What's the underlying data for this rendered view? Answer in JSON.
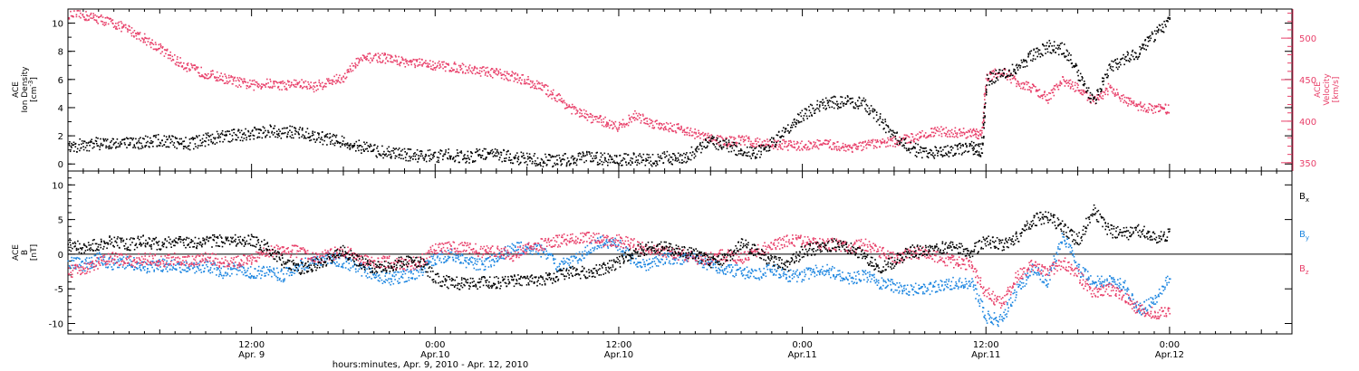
{
  "figure": {
    "x_axis_title": "hours:minutes, Apr.  9, 2010 - Apr. 12, 2010",
    "x_tick_labels": [
      {
        "x": 12,
        "time": "12:00",
        "date": "Apr. 9"
      },
      {
        "x": 24,
        "time": "0:00",
        "date": "Apr.10"
      },
      {
        "x": 36,
        "time": "12:00",
        "date": "Apr.10"
      },
      {
        "x": 48,
        "time": "0:00",
        "date": "Apr.11"
      },
      {
        "x": 60,
        "time": "12:00",
        "date": "Apr.11"
      },
      {
        "x": 72,
        "time": "0:00",
        "date": "Apr.12"
      }
    ]
  },
  "chart_data": [
    {
      "type": "scatter",
      "title": "",
      "x_unit": "hours from Apr. 9, 2010 0:00",
      "xlim": [
        0,
        80
      ],
      "y_left": {
        "label_lines": [
          "ACE",
          "Ion Density",
          "[cm^-3]"
        ],
        "ylim": [
          -0.5,
          11
        ],
        "ticks": [
          0,
          2,
          4,
          6,
          8,
          10
        ]
      },
      "y_right": {
        "label_lines": [
          "ACE",
          "Velocity",
          "[km/s]"
        ],
        "ylim": [
          340,
          535
        ],
        "ticks": [
          350,
          400,
          450,
          500
        ]
      },
      "series": [
        {
          "name": "Ion Density",
          "color": "#000000",
          "axis": "left",
          "x": [
            0,
            1,
            2,
            3,
            4,
            5,
            6,
            7,
            8,
            9,
            10,
            11,
            12,
            13,
            14,
            15,
            16,
            17,
            18,
            19,
            20,
            21,
            22,
            23,
            24,
            25,
            26,
            27,
            28,
            29,
            30,
            31,
            32,
            33,
            34,
            35,
            36,
            37,
            38,
            39,
            40,
            41,
            42,
            43,
            44,
            45,
            46,
            47,
            48,
            49,
            50,
            51,
            52,
            53,
            54,
            55,
            56,
            57,
            58,
            59,
            59.7,
            60,
            61,
            62,
            63,
            64,
            65,
            66,
            67,
            68,
            69,
            70,
            71,
            72
          ],
          "y": [
            1.3,
            1.4,
            1.5,
            1.6,
            1.5,
            1.6,
            1.7,
            1.6,
            1.5,
            1.8,
            2.0,
            2.1,
            2.2,
            2.4,
            2.3,
            2.3,
            2.0,
            1.8,
            1.6,
            1.3,
            1.0,
            0.8,
            0.7,
            0.6,
            0.6,
            0.7,
            0.5,
            0.8,
            0.7,
            0.5,
            0.4,
            0.3,
            0.3,
            0.4,
            0.5,
            0.4,
            0.3,
            0.4,
            0.3,
            0.5,
            0.4,
            1.0,
            1.6,
            1.4,
            1.0,
            0.8,
            1.5,
            2.5,
            3.5,
            4.2,
            4.4,
            4.5,
            4.3,
            3.2,
            2.0,
            1.2,
            0.8,
            0.9,
            1.1,
            1.2,
            1.0,
            6.0,
            6.5,
            6.8,
            7.8,
            8.4,
            8.2,
            6.5,
            4.5,
            6.8,
            7.5,
            8.0,
            9.2,
            10.2
          ]
        },
        {
          "name": "Velocity",
          "color": "#e8406a",
          "axis": "right",
          "x": [
            0,
            1,
            2,
            3,
            4,
            5,
            6,
            7,
            8,
            9,
            10,
            11,
            12,
            13,
            14,
            15,
            16,
            17,
            18,
            19,
            20,
            21,
            22,
            23,
            24,
            25,
            26,
            27,
            28,
            29,
            30,
            31,
            32,
            33,
            34,
            35,
            36,
            37,
            38,
            39,
            40,
            41,
            42,
            43,
            44,
            45,
            46,
            47,
            48,
            49,
            50,
            51,
            52,
            53,
            54,
            55,
            56,
            57,
            58,
            59,
            59.7,
            60,
            61,
            62,
            63,
            64,
            65,
            66,
            67,
            68,
            69,
            70,
            71,
            72
          ],
          "y": [
            530,
            528,
            524,
            518,
            510,
            500,
            488,
            474,
            464,
            458,
            453,
            448,
            444,
            446,
            444,
            446,
            442,
            448,
            454,
            474,
            478,
            476,
            472,
            470,
            468,
            466,
            464,
            461,
            458,
            455,
            449,
            441,
            429,
            414,
            406,
            400,
            394,
            408,
            399,
            395,
            392,
            385,
            380,
            376,
            378,
            375,
            373,
            372,
            371,
            373,
            372,
            369,
            371,
            374,
            376,
            380,
            386,
            388,
            387,
            386,
            385,
            455,
            460,
            448,
            440,
            428,
            450,
            440,
            424,
            440,
            426,
            418,
            416,
            415
          ]
        }
      ]
    },
    {
      "type": "scatter",
      "title": "",
      "x_unit": "hours from Apr. 9, 2010 0:00",
      "xlim": [
        0,
        80
      ],
      "y_left": {
        "label_lines": [
          "ACE",
          "B",
          "[nT]"
        ],
        "ylim": [
          -11.5,
          12
        ],
        "ticks": [
          -10,
          -5,
          0,
          5,
          10
        ]
      },
      "reference_line": 0,
      "series": [
        {
          "name": "Bx",
          "label_main": "B",
          "label_sub": "x",
          "color": "#000000",
          "x": [
            0,
            1,
            2,
            3,
            4,
            5,
            6,
            7,
            8,
            9,
            10,
            11,
            12,
            13,
            14,
            15,
            16,
            17,
            18,
            19,
            20,
            21,
            22,
            23,
            24,
            25,
            26,
            27,
            28,
            29,
            30,
            31,
            32,
            33,
            34,
            35,
            36,
            37,
            38,
            39,
            40,
            41,
            42,
            43,
            44,
            45,
            46,
            47,
            48,
            49,
            50,
            51,
            52,
            53,
            54,
            55,
            56,
            57,
            58,
            59,
            60,
            61,
            62,
            63,
            64,
            65,
            66,
            67,
            68,
            69,
            70,
            71,
            72
          ],
          "y": [
            1.5,
            1.0,
            1.5,
            2.0,
            1.5,
            2.0,
            1.5,
            2.0,
            1.5,
            2.0,
            2.0,
            2.0,
            2.2,
            1.0,
            -1.0,
            -2.0,
            -1.5,
            -0.5,
            0.5,
            -1.0,
            -2.0,
            -1.5,
            -1.0,
            -1.0,
            -3.5,
            -4.0,
            -4.2,
            -4.0,
            -4.0,
            -3.8,
            -3.6,
            -3.5,
            -3.0,
            -2.5,
            -2.5,
            -2.0,
            -1.0,
            0.5,
            1.0,
            1.0,
            0.5,
            0.0,
            -1.0,
            -0.5,
            1.5,
            0.5,
            -1.0,
            -1.5,
            0.5,
            1.0,
            1.5,
            1.0,
            0.0,
            -2.0,
            -1.0,
            0.5,
            0.5,
            1.0,
            1.0,
            0.5,
            2.0,
            1.5,
            2.5,
            5.0,
            5.5,
            4.0,
            2.0,
            6.5,
            3.5,
            3.0,
            3.5,
            2.5,
            3.0
          ]
        },
        {
          "name": "By",
          "label_main": "B",
          "label_sub": "y",
          "color": "#1d86e0",
          "x": [
            0,
            1,
            2,
            3,
            4,
            5,
            6,
            7,
            8,
            9,
            10,
            11,
            12,
            13,
            14,
            15,
            16,
            17,
            18,
            19,
            20,
            21,
            22,
            23,
            24,
            25,
            26,
            27,
            28,
            29,
            30,
            31,
            32,
            33,
            34,
            35,
            36,
            37,
            38,
            39,
            40,
            41,
            42,
            43,
            44,
            45,
            46,
            47,
            48,
            49,
            50,
            51,
            52,
            53,
            54,
            55,
            56,
            57,
            58,
            59,
            60,
            61,
            62,
            63,
            64,
            65,
            66,
            67,
            68,
            69,
            70,
            71,
            72
          ],
          "y": [
            -1.0,
            -1.5,
            -0.5,
            -1.5,
            -1.0,
            -2.0,
            -1.5,
            -1.5,
            -2.0,
            -1.5,
            -2.5,
            -2.0,
            -2.5,
            -2.5,
            -3.0,
            -1.5,
            -1.0,
            -0.5,
            -1.0,
            -2.0,
            -3.0,
            -3.5,
            -3.0,
            -2.5,
            -0.5,
            0.0,
            -1.0,
            -1.5,
            -0.5,
            1.0,
            1.0,
            0.5,
            -1.5,
            -1.0,
            1.0,
            2.0,
            1.5,
            -1.0,
            -1.5,
            -0.5,
            -0.5,
            -0.5,
            -1.5,
            -2.0,
            -2.5,
            -3.0,
            -2.0,
            -3.0,
            -3.0,
            -2.0,
            -2.5,
            -3.5,
            -3.0,
            -4.0,
            -4.5,
            -5.0,
            -5.0,
            -4.5,
            -4.0,
            -4.0,
            -9.0,
            -9.5,
            -5.0,
            -2.0,
            -4.0,
            3.0,
            -2.0,
            -4.0,
            -3.5,
            -4.5,
            -8.0,
            -6.5,
            -3.0
          ]
        },
        {
          "name": "Bz",
          "label_main": "B",
          "label_sub": "z",
          "color": "#e8406a",
          "x": [
            0,
            1,
            2,
            3,
            4,
            5,
            6,
            7,
            8,
            9,
            10,
            11,
            12,
            13,
            14,
            15,
            16,
            17,
            18,
            19,
            20,
            21,
            22,
            23,
            24,
            25,
            26,
            27,
            28,
            29,
            30,
            31,
            32,
            33,
            34,
            35,
            36,
            37,
            38,
            39,
            40,
            41,
            42,
            43,
            44,
            45,
            46,
            47,
            48,
            49,
            50,
            51,
            52,
            53,
            54,
            55,
            56,
            57,
            58,
            59,
            60,
            61,
            62,
            63,
            64,
            65,
            66,
            67,
            68,
            69,
            70,
            71,
            72
          ],
          "y": [
            -2.5,
            -2.0,
            -1.0,
            -0.5,
            -1.0,
            -0.5,
            -1.0,
            -0.5,
            -1.0,
            -0.5,
            -1.0,
            -1.0,
            -0.5,
            0.5,
            0.5,
            0.5,
            -0.5,
            0.0,
            0.5,
            -0.5,
            -1.0,
            -1.0,
            -1.5,
            -1.0,
            1.0,
            1.0,
            1.0,
            0.5,
            0.5,
            0.0,
            1.0,
            1.5,
            2.0,
            2.5,
            2.5,
            2.0,
            2.0,
            1.5,
            0.5,
            0.5,
            0.0,
            -0.5,
            -0.5,
            0.0,
            -0.5,
            0.5,
            1.5,
            2.0,
            2.0,
            1.5,
            1.5,
            1.0,
            1.5,
            0.5,
            -0.5,
            0.0,
            0.5,
            -0.5,
            -1.0,
            -1.5,
            -5.5,
            -7.0,
            -3.0,
            -1.5,
            -2.5,
            -1.0,
            -3.0,
            -5.5,
            -5.0,
            -6.0,
            -8.0,
            -8.5,
            -8.0
          ]
        }
      ]
    }
  ]
}
